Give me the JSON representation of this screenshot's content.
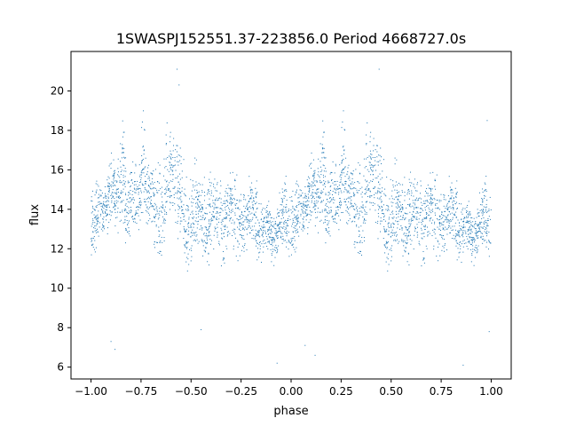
{
  "chart_data": {
    "type": "scatter",
    "title": "1SWASPJ152551.37-223856.0 Period 4668727.0s",
    "xlabel": "phase",
    "ylabel": "flux",
    "xlim": [
      -1.1,
      1.1
    ],
    "ylim": [
      5.4,
      22.0
    ],
    "xticks": [
      -1.0,
      -0.75,
      -0.5,
      -0.25,
      0.0,
      0.25,
      0.5,
      0.75,
      1.0
    ],
    "xtick_labels": [
      "−1.00",
      "−0.75",
      "−0.50",
      "−0.25",
      "0.00",
      "0.25",
      "0.50",
      "0.75",
      "1.00"
    ],
    "yticks": [
      6,
      8,
      10,
      12,
      14,
      16,
      18,
      20
    ],
    "ytick_labels": [
      "6",
      "8",
      "10",
      "12",
      "14",
      "16",
      "18",
      "20"
    ],
    "grid": false,
    "series_color": "#1f77b4",
    "phase_profile": {
      "phase": [
        0.0,
        0.02,
        0.04,
        0.06,
        0.08,
        0.1,
        0.12,
        0.14,
        0.16,
        0.18,
        0.2,
        0.22,
        0.24,
        0.26,
        0.28,
        0.3,
        0.32,
        0.34,
        0.36,
        0.38,
        0.4,
        0.42,
        0.44,
        0.46,
        0.48,
        0.5,
        0.52,
        0.54,
        0.56,
        0.58,
        0.6,
        0.62,
        0.64,
        0.66,
        0.68,
        0.7,
        0.72,
        0.74,
        0.76,
        0.78,
        0.8,
        0.82,
        0.84,
        0.86,
        0.88,
        0.9,
        0.92,
        0.94,
        0.96,
        0.98
      ],
      "flux_low": [
        11.0,
        11.5,
        12.0,
        12.3,
        12.5,
        13.5,
        13.0,
        12.5,
        12.5,
        11.8,
        12.0,
        12.5,
        13.0,
        12.5,
        13.0,
        13.5,
        11.2,
        10.5,
        11.0,
        12.5,
        13.5,
        13.0,
        12.0,
        11.5,
        10.2,
        10.5,
        12.0,
        12.5,
        11.5,
        10.5,
        11.5,
        12.5,
        11.0,
        10.5,
        11.5,
        12.5,
        11.5,
        11.0,
        11.5,
        12.0,
        12.5,
        11.5,
        11.0,
        11.8,
        12.0,
        11.2,
        11.0,
        11.5,
        11.5,
        11.0
      ],
      "flux_high": [
        15.5,
        15.8,
        16.0,
        15.5,
        15.5,
        17.5,
        16.5,
        17.0,
        19.0,
        16.0,
        17.0,
        16.5,
        16.0,
        19.5,
        16.5,
        16.5,
        17.0,
        16.5,
        16.0,
        19.0,
        18.5,
        17.5,
        18.0,
        16.5,
        15.5,
        15.5,
        16.5,
        16.0,
        15.5,
        16.0,
        16.0,
        15.5,
        15.5,
        16.0,
        16.5,
        16.0,
        16.0,
        15.5,
        15.0,
        15.5,
        16.0,
        15.5,
        15.5,
        14.5,
        14.5,
        14.5,
        14.0,
        15.0,
        16.0,
        15.5
      ]
    },
    "observations_per_cycle": 1800,
    "outliers": [
      {
        "phase": -0.88,
        "flux": 6.9
      },
      {
        "phase": -0.9,
        "flux": 7.3
      },
      {
        "phase": -0.57,
        "flux": 21.1
      },
      {
        "phase": -0.56,
        "flux": 20.3
      },
      {
        "phase": -0.45,
        "flux": 7.9
      },
      {
        "phase": -0.07,
        "flux": 6.2
      },
      {
        "phase": 0.07,
        "flux": 7.1
      },
      {
        "phase": 0.12,
        "flux": 6.6
      },
      {
        "phase": 0.44,
        "flux": 21.1
      },
      {
        "phase": 0.86,
        "flux": 6.1
      },
      {
        "phase": 0.98,
        "flux": 18.5
      },
      {
        "phase": 0.99,
        "flux": 7.8
      }
    ]
  }
}
